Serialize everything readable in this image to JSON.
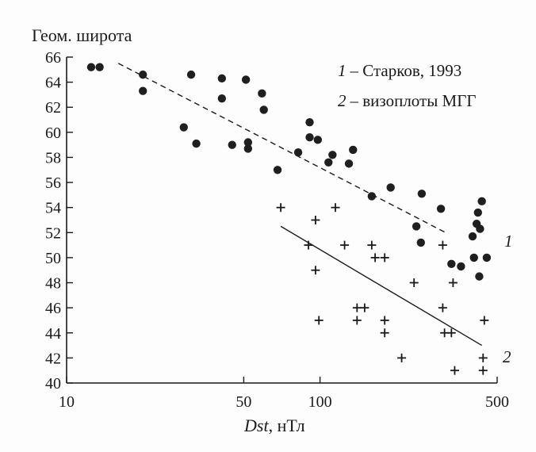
{
  "chart_data": {
    "type": "scatter",
    "xscale": "log",
    "xlim": [
      10,
      500
    ],
    "ylim": [
      40,
      66
    ],
    "xticks": [
      10,
      50,
      100,
      500
    ],
    "yticks": [
      40,
      42,
      44,
      46,
      48,
      50,
      52,
      54,
      56,
      58,
      60,
      62,
      64,
      66
    ],
    "ylabel": "Геом. широта",
    "xlabel_italic": "Dst",
    "xlabel_rest": ", нТл",
    "grid": false,
    "legend": [
      {
        "number": "1",
        "text": "– Старков, 1993"
      },
      {
        "number": "2",
        "text": "– визоплоты МГГ"
      }
    ],
    "legend_position": "top-right",
    "series": [
      {
        "marker": "circle",
        "points": [
          [
            12.5,
            65.2
          ],
          [
            13.5,
            65.2
          ],
          [
            20,
            64.6
          ],
          [
            20,
            63.3
          ],
          [
            29,
            60.4
          ],
          [
            31,
            64.6
          ],
          [
            32.5,
            59.1
          ],
          [
            41,
            64.3
          ],
          [
            41,
            62.7
          ],
          [
            45,
            59.0
          ],
          [
            51,
            64.2
          ],
          [
            52,
            59.2
          ],
          [
            52,
            58.7
          ],
          [
            59,
            63.1
          ],
          [
            60,
            61.8
          ],
          [
            68,
            57.0
          ],
          [
            82,
            58.4
          ],
          [
            91,
            60.8
          ],
          [
            91,
            59.6
          ],
          [
            98,
            59.4
          ],
          [
            108,
            57.6
          ],
          [
            112,
            58.2
          ],
          [
            130,
            57.5
          ],
          [
            135,
            58.6
          ],
          [
            160,
            54.9
          ],
          [
            190,
            55.6
          ],
          [
            240,
            52.5
          ],
          [
            250,
            51.2
          ],
          [
            252,
            55.1
          ],
          [
            300,
            53.9
          ],
          [
            330,
            49.5
          ],
          [
            360,
            49.3
          ],
          [
            400,
            51.7
          ],
          [
            405,
            50.0
          ],
          [
            415,
            52.7
          ],
          [
            420,
            53.6
          ],
          [
            425,
            48.5
          ],
          [
            428,
            52.3
          ],
          [
            435,
            54.5
          ],
          [
            455,
            50.0
          ]
        ]
      },
      {
        "marker": "plus",
        "points": [
          [
            70,
            54.0
          ],
          [
            90,
            51.0
          ],
          [
            96,
            53.0
          ],
          [
            96,
            49.0
          ],
          [
            99,
            45.0
          ],
          [
            115,
            54.0
          ],
          [
            125,
            51.0
          ],
          [
            140,
            46.0
          ],
          [
            140,
            45.0
          ],
          [
            150,
            46.0
          ],
          [
            160,
            51.0
          ],
          [
            165,
            50.0
          ],
          [
            180,
            50.0
          ],
          [
            180,
            45.0
          ],
          [
            180,
            44.0
          ],
          [
            210,
            42.0
          ],
          [
            235,
            48.0
          ],
          [
            305,
            51.0
          ],
          [
            305,
            46.0
          ],
          [
            310,
            44.0
          ],
          [
            330,
            44.0
          ],
          [
            335,
            48.0
          ],
          [
            340,
            41.0
          ],
          [
            440,
            42.0
          ],
          [
            440,
            41.0
          ],
          [
            445,
            45.0
          ]
        ]
      }
    ],
    "fit_lines": [
      {
        "style": "dashed",
        "label": "1",
        "from": [
          16,
          65.5
        ],
        "to": [
          320,
          51.9
        ]
      },
      {
        "style": "solid",
        "label": "2",
        "from": [
          70,
          52.5
        ],
        "to": [
          435,
          43.0
        ]
      }
    ]
  }
}
